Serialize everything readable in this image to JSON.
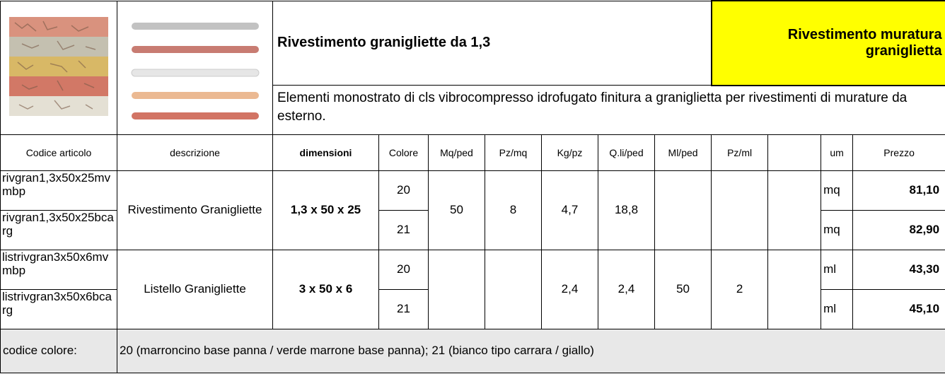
{
  "header": {
    "title": "Rivestimento granigliette da 1,3",
    "category": "Rivestimento muratura graniglietta",
    "description": "Elementi monostrato di cls vibrocompresso idrofugato finitura a graniglietta per rivestimenti di murature da esterno."
  },
  "table": {
    "columns": [
      "Codice articolo",
      "descrizione",
      "dimensioni",
      "Colore",
      "Mq/ped",
      "Pz/mq",
      "Kg/pz",
      "Q.li/ped",
      "Ml/ped",
      "Pz/ml",
      "um",
      "Prezzo"
    ],
    "groups": [
      {
        "description": "Rivestimento Granigliette",
        "dimensions": "1,3 x 50 x 25",
        "mq_ped": "50",
        "pz_mq": "8",
        "kg_pz": "4,7",
        "qli_ped": "18,8",
        "items": [
          {
            "code": "rivgran1,3x50x25mvmbp",
            "color": "20",
            "um": "mq",
            "price": "81,10"
          },
          {
            "code": "rivgran1,3x50x25bcarg",
            "color": "21",
            "um": "mq",
            "price": "82,90"
          }
        ]
      },
      {
        "description": "Listello Granigliette",
        "dimensions": "3 x 50 x 6",
        "kg_pz": "2,4",
        "qli_ped": "2,4",
        "ml_ped": "50",
        "pz_ml": "2",
        "items": [
          {
            "code": "listrivgran3x50x6mvmbp",
            "color": "20",
            "um": "ml",
            "price": "43,30"
          },
          {
            "code": "listrivgran3x50x6bcarg",
            "color": "21",
            "um": "ml",
            "price": "45,10"
          }
        ]
      }
    ]
  },
  "footer": {
    "label": "codice colore:",
    "text": "20 (marroncino base panna / verde marrone base panna); 21 (bianco tipo carrara / giallo)"
  }
}
